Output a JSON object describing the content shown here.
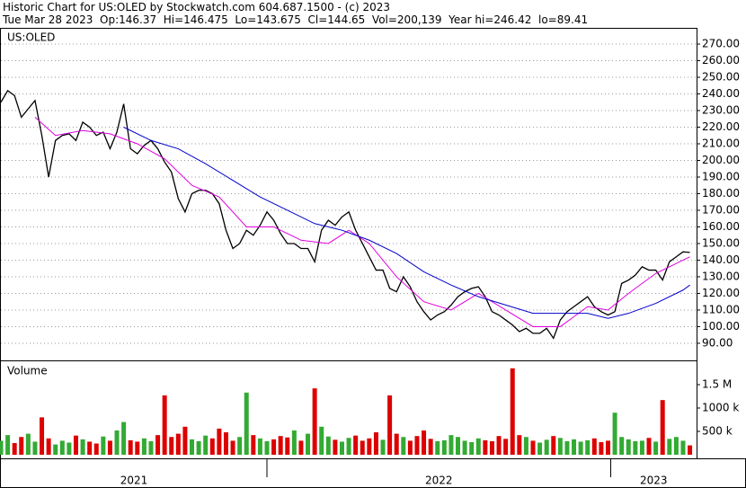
{
  "header": {
    "line1": "Historic Chart for US:OLED by Stockwatch.com 604.687.1500 - (c) 2023",
    "line2": "Tue Mar 28 2023  Op:146.37  Hi=146.475  Lo=143.675  Cl=144.65  Vol=200,139  Year hi=246.42  lo=89.41"
  },
  "chart_data": [
    {
      "type": "line",
      "title": "US:OLED",
      "xlim": [
        0,
        509.9
      ],
      "ylim": [
        79.7,
        279.2
      ],
      "grid": true,
      "yticks": [
        {
          "value": 90,
          "label": "90.00"
        },
        {
          "value": 100,
          "label": "100.00"
        },
        {
          "value": 110,
          "label": "110.00"
        },
        {
          "value": 120,
          "label": "120.00"
        },
        {
          "value": 130,
          "label": "130.00"
        },
        {
          "value": 140,
          "label": "140.00"
        },
        {
          "value": 150,
          "label": "150.00"
        },
        {
          "value": 160,
          "label": "160.00"
        },
        {
          "value": 170,
          "label": "170.00"
        },
        {
          "value": 180,
          "label": "180.00"
        },
        {
          "value": 190,
          "label": "190.00"
        },
        {
          "value": 200,
          "label": "200.00"
        },
        {
          "value": 210,
          "label": "210.00"
        },
        {
          "value": 220,
          "label": "220.00"
        },
        {
          "value": 230,
          "label": "230.00"
        },
        {
          "value": 240,
          "label": "240.00"
        },
        {
          "value": 250,
          "label": "250.00"
        },
        {
          "value": 260,
          "label": "260.00"
        },
        {
          "value": 270,
          "label": "270.00"
        }
      ],
      "series": [
        {
          "color": "#000000",
          "x": [
            0,
            5,
            10,
            15,
            20,
            25,
            30,
            35,
            40,
            45,
            50,
            55,
            60,
            65,
            70,
            75,
            80,
            85,
            90,
            95,
            100,
            105,
            110,
            115,
            120,
            125,
            130,
            135,
            140,
            145,
            150,
            155,
            160,
            165,
            170,
            175,
            180,
            185,
            190,
            195,
            200,
            205,
            210,
            215,
            220,
            225,
            230,
            235,
            240,
            245,
            250,
            255,
            260,
            265,
            270,
            275,
            280,
            285,
            290,
            295,
            300,
            305,
            310,
            315,
            320,
            325,
            330,
            335,
            340,
            345,
            350,
            355,
            360,
            365,
            370,
            375,
            380,
            385,
            390,
            395,
            400,
            405,
            410,
            415,
            420,
            425,
            430,
            435,
            440,
            445,
            450,
            455,
            460,
            465,
            470,
            475,
            480,
            485,
            490,
            495,
            500,
            505
          ],
          "values": [
            235,
            242,
            239,
            226,
            231,
            236,
            215,
            190,
            212,
            215,
            216,
            212,
            223,
            220,
            215,
            217,
            207,
            217,
            234,
            207,
            204,
            209,
            212,
            207,
            199,
            193,
            177,
            169,
            180,
            182,
            182,
            180,
            174,
            158,
            147,
            150,
            158,
            155,
            161,
            169,
            164,
            156,
            150,
            150,
            147,
            147,
            139,
            158,
            164,
            161,
            166,
            169,
            158,
            150,
            142,
            134,
            134,
            123,
            121,
            130,
            124,
            115,
            109,
            104,
            107,
            109,
            113,
            118,
            121,
            123,
            124,
            118,
            109,
            107,
            104,
            101,
            97,
            99,
            96,
            96,
            99,
            93,
            104,
            109,
            112,
            115,
            118,
            112,
            109,
            107,
            109,
            126,
            128,
            131,
            136,
            134,
            134,
            128,
            139,
            142,
            145,
            144.65
          ]
        },
        {
          "color": "#dd00dd",
          "x": [
            25,
            40,
            60,
            80,
            100,
            120,
            140,
            160,
            180,
            200,
            220,
            240,
            255,
            270,
            290,
            310,
            330,
            350,
            370,
            390,
            410,
            430,
            445,
            460,
            480,
            500,
            505
          ],
          "values": [
            226,
            215,
            218,
            216,
            210,
            201,
            185,
            178,
            160,
            160,
            152,
            150,
            158,
            150,
            130,
            115,
            110,
            120,
            110,
            100,
            100,
            112,
            110,
            120,
            132,
            140,
            142
          ]
        },
        {
          "color": "#0000cc",
          "x": [
            90,
            110,
            130,
            150,
            170,
            190,
            210,
            230,
            250,
            270,
            290,
            310,
            330,
            350,
            370,
            390,
            410,
            430,
            445,
            460,
            480,
            500,
            505
          ],
          "values": [
            220,
            212,
            207,
            198,
            188,
            178,
            170,
            162,
            158,
            152,
            144,
            133,
            125,
            118,
            113,
            108,
            108,
            108,
            105,
            108,
            114,
            122,
            125
          ]
        }
      ]
    },
    {
      "type": "bar",
      "title": "Volume",
      "xlim": [
        0,
        509.9
      ],
      "ylim": [
        -77000,
        2000000
      ],
      "up_color": "#33aa33",
      "down_color": "#dd0000",
      "yticks": [
        {
          "value": 500000,
          "label": "500 k"
        },
        {
          "value": 1000000,
          "label": "1000 k"
        },
        {
          "value": 1500000,
          "label": "1.5 M"
        }
      ],
      "x": [
        0,
        5,
        10,
        15,
        20,
        25,
        30,
        35,
        40,
        45,
        50,
        55,
        60,
        65,
        70,
        75,
        80,
        85,
        90,
        95,
        100,
        105,
        110,
        115,
        120,
        125,
        130,
        135,
        140,
        145,
        150,
        155,
        160,
        165,
        170,
        175,
        180,
        185,
        190,
        195,
        200,
        205,
        210,
        215,
        220,
        225,
        230,
        235,
        240,
        245,
        250,
        255,
        260,
        265,
        270,
        275,
        280,
        285,
        290,
        295,
        300,
        305,
        310,
        315,
        320,
        325,
        330,
        335,
        340,
        345,
        350,
        355,
        360,
        365,
        370,
        375,
        380,
        385,
        390,
        395,
        400,
        405,
        410,
        415,
        420,
        425,
        430,
        435,
        440,
        445,
        450,
        455,
        460,
        465,
        470,
        475,
        480,
        485,
        490,
        495,
        500,
        505
      ],
      "values": [
        300000,
        420000,
        250000,
        380000,
        450000,
        280000,
        800000,
        350000,
        220000,
        300000,
        260000,
        410000,
        330000,
        280000,
        240000,
        390000,
        300000,
        520000,
        700000,
        310000,
        280000,
        350000,
        290000,
        420000,
        1270000,
        380000,
        450000,
        600000,
        330000,
        290000,
        410000,
        350000,
        560000,
        480000,
        300000,
        380000,
        1330000,
        420000,
        350000,
        290000,
        330000,
        400000,
        370000,
        520000,
        300000,
        450000,
        1420000,
        600000,
        390000,
        320000,
        280000,
        360000,
        410000,
        300000,
        350000,
        480000,
        320000,
        1270000,
        450000,
        380000,
        300000,
        400000,
        520000,
        340000,
        290000,
        310000,
        420000,
        380000,
        300000,
        270000,
        350000,
        310000,
        290000,
        400000,
        340000,
        1850000,
        420000,
        380000,
        300000,
        260000,
        320000,
        400000,
        360000,
        290000,
        330000,
        280000,
        310000,
        350000,
        270000,
        300000,
        900000,
        380000,
        330000,
        290000,
        300000,
        360000,
        280000,
        1170000,
        340000,
        380000,
        300000,
        200139
      ]
    }
  ],
  "time_axis": {
    "xlim": [
      0,
      509.9
    ],
    "periods": [
      {
        "label": "2021",
        "start": 0,
        "end": 195
      },
      {
        "label": "2022",
        "start": 195,
        "end": 447
      },
      {
        "label": "2023",
        "start": 447,
        "end": 509.9
      }
    ]
  }
}
